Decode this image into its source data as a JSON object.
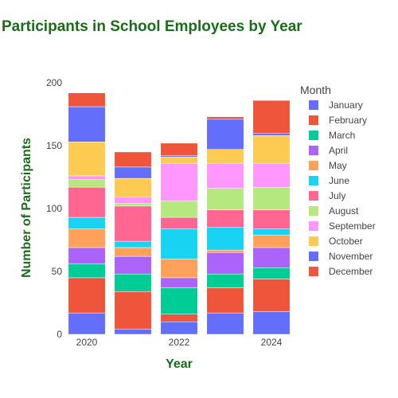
{
  "chart_data": {
    "type": "bar",
    "stacked": true,
    "title": "Participants in School Employees by Year",
    "xlabel": "Year",
    "ylabel": "Number of Participants",
    "x": [
      2020,
      2021,
      2022,
      2023,
      2024
    ],
    "x_tick_labels": [
      "2020",
      "2022",
      "2024"
    ],
    "x_tick_values": [
      2020,
      2022,
      2024
    ],
    "ylim": [
      0,
      200
    ],
    "y_ticks": [
      0,
      50,
      100,
      150,
      200
    ],
    "grid": false,
    "legend_title": "Month",
    "legend_position": "right",
    "title_color": "#1a6b1a",
    "series": [
      {
        "name": "January",
        "color": "#636efa",
        "values": [
          17,
          4,
          10,
          17,
          18
        ]
      },
      {
        "name": "February",
        "color": "#ef553b",
        "values": [
          28,
          30,
          6,
          20,
          26
        ]
      },
      {
        "name": "March",
        "color": "#00cc96",
        "values": [
          11,
          14,
          21,
          11,
          9
        ]
      },
      {
        "name": "April",
        "color": "#ab63fa",
        "values": [
          13,
          14,
          8,
          17,
          16
        ]
      },
      {
        "name": "May",
        "color": "#ffa15a",
        "values": [
          15,
          7,
          15,
          2,
          10
        ]
      },
      {
        "name": "June",
        "color": "#19d3f3",
        "values": [
          9,
          5,
          24,
          18,
          5
        ]
      },
      {
        "name": "July",
        "color": "#ff6692",
        "values": [
          24,
          28,
          9,
          14,
          15
        ]
      },
      {
        "name": "August",
        "color": "#b6e880",
        "values": [
          6,
          2,
          13,
          17,
          18
        ]
      },
      {
        "name": "September",
        "color": "#ff97ff",
        "values": [
          3,
          5,
          30,
          20,
          19
        ]
      },
      {
        "name": "October",
        "color": "#fecb52",
        "values": [
          27,
          15,
          5,
          11,
          22
        ]
      },
      {
        "name": "November",
        "color": "#636efa",
        "values": [
          28,
          9,
          1,
          24,
          2
        ]
      },
      {
        "name": "December",
        "color": "#ef553b",
        "values": [
          11,
          12,
          10,
          2,
          26
        ]
      }
    ]
  }
}
